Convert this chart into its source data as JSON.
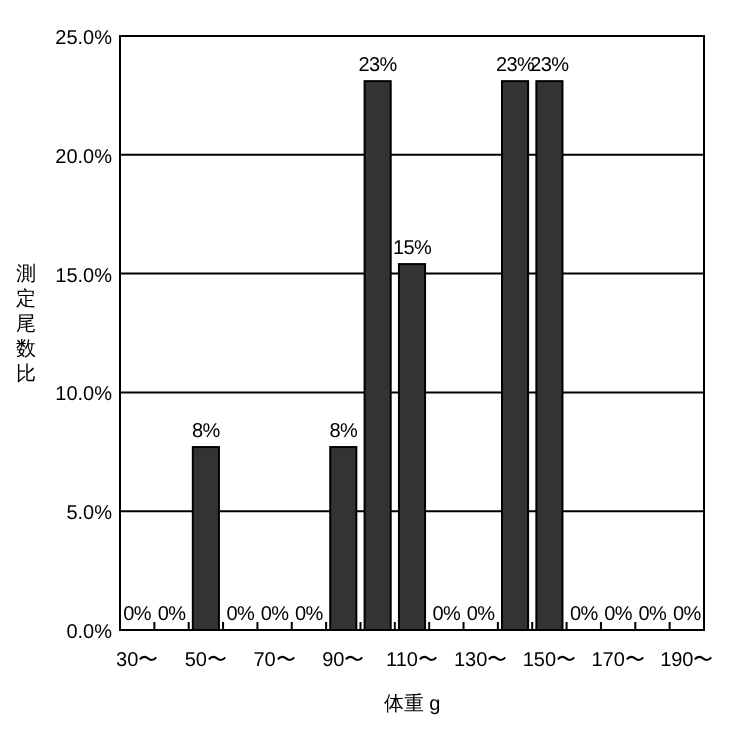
{
  "chart_data": {
    "type": "bar",
    "xlabel": "体重 g",
    "ylabel": "測定尾数比",
    "categories": [
      "30〜",
      null,
      "50〜",
      null,
      "70〜",
      null,
      "90〜",
      null,
      "110〜",
      null,
      "130〜",
      null,
      "150〜",
      null,
      "170〜",
      null,
      "190〜"
    ],
    "values": [
      0,
      0,
      7.7,
      0,
      0,
      0,
      7.7,
      23.1,
      15.4,
      0,
      0,
      23.1,
      23.1,
      0,
      0,
      0,
      0
    ],
    "value_labels": [
      "0%",
      "0%",
      "8%",
      "0%",
      "0%",
      "0%",
      "8%",
      "23%",
      "15%",
      "0%",
      "0%",
      "23%",
      "23%",
      "0%",
      "0%",
      "0%",
      "0%"
    ],
    "color": "#333333",
    "ylim": [
      0,
      25
    ],
    "yticks": [
      {
        "value": 0,
        "label": "0.0%"
      },
      {
        "value": 5,
        "label": "5.0%"
      },
      {
        "value": 10,
        "label": "10.0%"
      },
      {
        "value": 15,
        "label": "15.0%"
      },
      {
        "value": 20,
        "label": "20.0%"
      },
      {
        "value": 25,
        "label": "25.0%"
      }
    ],
    "grid": "y"
  }
}
